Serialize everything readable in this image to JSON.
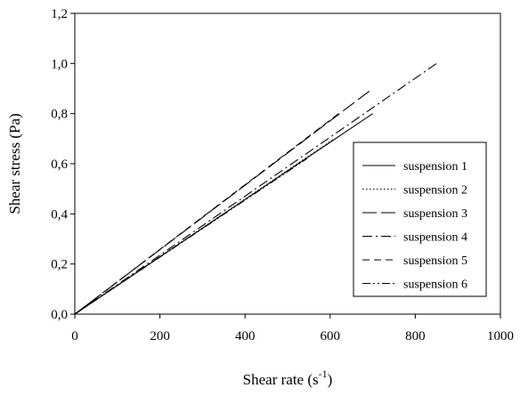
{
  "chart_data": {
    "type": "line",
    "xlabel_main": "Shear rate (s",
    "xlabel_sup": "-1",
    "xlabel_end": ")",
    "ylabel": "Shear stress (Pa)",
    "xlim": [
      0,
      1000
    ],
    "ylim": [
      0,
      1.2
    ],
    "x_ticks": [
      "0",
      "200",
      "400",
      "600",
      "800",
      "1000"
    ],
    "y_ticks": [
      "0,0",
      "0,2",
      "0,4",
      "0,6",
      "0,8",
      "1,0",
      "1,2"
    ],
    "grid": false,
    "legend_position": "right",
    "series": [
      {
        "name": "suspension 1",
        "dash": "solid",
        "x": [
          0,
          700
        ],
        "y": [
          0,
          0.8
        ]
      },
      {
        "name": "suspension 2",
        "dash": "dotted",
        "x": [
          0,
          610
        ],
        "y": [
          0,
          0.7
        ]
      },
      {
        "name": "suspension 3",
        "dash": "longdash",
        "x": [
          0,
          700
        ],
        "y": [
          0,
          0.9
        ]
      },
      {
        "name": "suspension 4",
        "dash": "dashdot",
        "x": [
          0,
          850
        ],
        "y": [
          0,
          1.0
        ]
      },
      {
        "name": "suspension 5",
        "dash": "dash",
        "x": [
          0,
          620
        ],
        "y": [
          0,
          0.8
        ]
      },
      {
        "name": "suspension 6",
        "dash": "dashdotdot",
        "x": [
          0,
          545
        ],
        "y": [
          0,
          0.62
        ]
      }
    ]
  }
}
